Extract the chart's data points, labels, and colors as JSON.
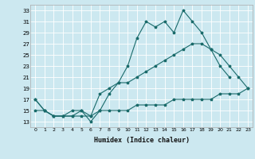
{
  "xlabel": "Humidex (Indice chaleur)",
  "bg_color": "#cce8f0",
  "line_color": "#1a6b6b",
  "grid_color": "#ffffff",
  "xlim": [
    -0.5,
    23.5
  ],
  "ylim": [
    12,
    34
  ],
  "xticks": [
    0,
    1,
    2,
    3,
    4,
    5,
    6,
    7,
    8,
    9,
    10,
    11,
    12,
    13,
    14,
    15,
    16,
    17,
    18,
    19,
    20,
    21,
    22,
    23
  ],
  "yticks": [
    13,
    15,
    17,
    19,
    21,
    23,
    25,
    27,
    29,
    31,
    33
  ],
  "line1_x": [
    0,
    1,
    2,
    3,
    4,
    5,
    6,
    7,
    8,
    9,
    10,
    11,
    12,
    13,
    14,
    15,
    16,
    17,
    18,
    19,
    20,
    21
  ],
  "line1_y": [
    17,
    15,
    14,
    14,
    14,
    15,
    13,
    15,
    18,
    20,
    23,
    28,
    31,
    30,
    31,
    29,
    33,
    31,
    29,
    26,
    23,
    21
  ],
  "line2_x": [
    0,
    1,
    2,
    3,
    4,
    5,
    6,
    7,
    8,
    9,
    10,
    11,
    12,
    13,
    14,
    15,
    16,
    17,
    18,
    19,
    20,
    21,
    22,
    23
  ],
  "line2_y": [
    17,
    15,
    14,
    14,
    15,
    15,
    14,
    18,
    19,
    20,
    20,
    21,
    22,
    23,
    24,
    25,
    26,
    27,
    27,
    26,
    25,
    23,
    21,
    19
  ],
  "line3_x": [
    0,
    1,
    2,
    3,
    4,
    5,
    6,
    7,
    8,
    9,
    10,
    11,
    12,
    13,
    14,
    15,
    16,
    17,
    18,
    19,
    20,
    21,
    22,
    23
  ],
  "line3_y": [
    15,
    15,
    14,
    14,
    14,
    14,
    14,
    15,
    15,
    15,
    15,
    16,
    16,
    16,
    16,
    17,
    17,
    17,
    17,
    17,
    18,
    18,
    18,
    19
  ]
}
